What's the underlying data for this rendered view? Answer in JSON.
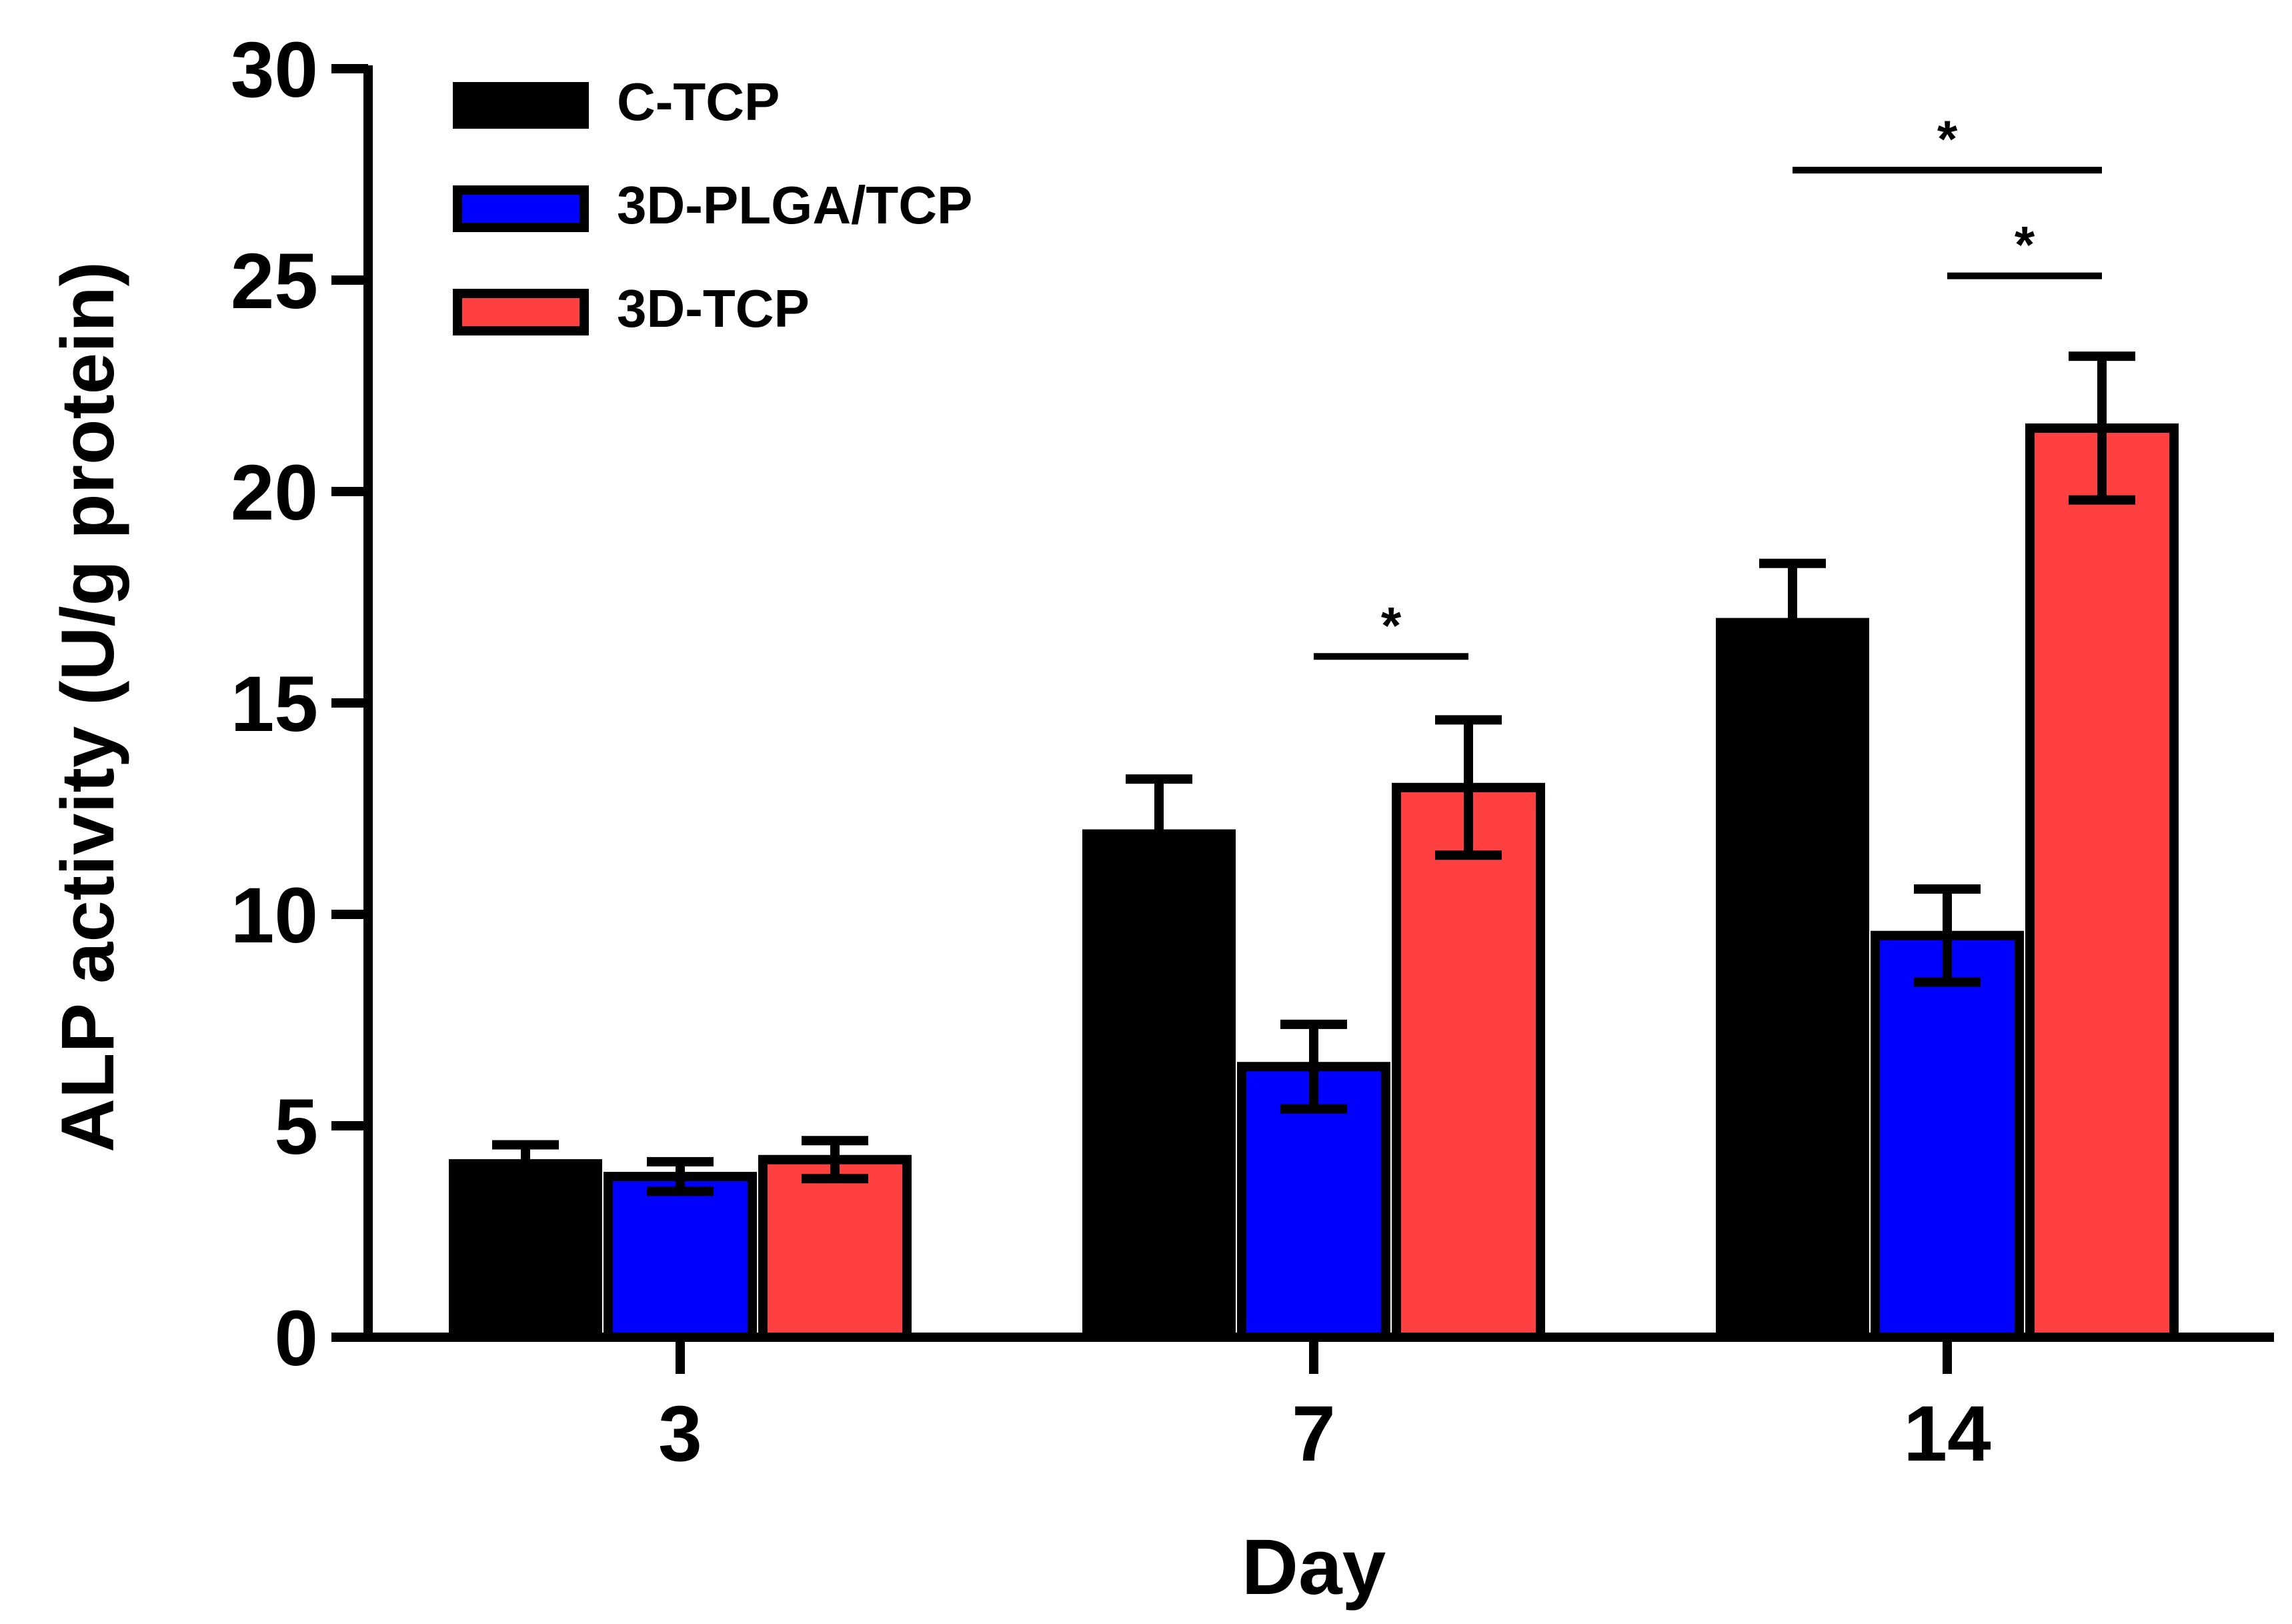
{
  "chart_data": {
    "type": "bar",
    "title": "",
    "xlabel": "Day",
    "ylabel": "ALP activity (U/g protein)",
    "ylim": [
      0,
      30
    ],
    "yticks": [
      "0",
      "5",
      "10",
      "15",
      "20",
      "25",
      "30"
    ],
    "categories": [
      "3",
      "7",
      "14"
    ],
    "grid": false,
    "legend_position": "top-left",
    "series": [
      {
        "name": "C-TCP",
        "color": "#000000",
        "values": [
          4.1,
          11.9,
          16.9
        ],
        "errors": [
          0.45,
          1.3,
          1.4
        ]
      },
      {
        "name": "3D-PLGA/TCP",
        "color": "#0000ff",
        "values": [
          3.8,
          6.4,
          9.5
        ],
        "errors": [
          0.35,
          1.0,
          1.1
        ]
      },
      {
        "name": "3D-TCP",
        "color": "#ff4040",
        "values": [
          4.2,
          13.0,
          21.5
        ],
        "errors": [
          0.45,
          1.6,
          1.7
        ]
      }
    ],
    "significance": [
      {
        "category_index": 1,
        "from_series": 1,
        "to_series": 2,
        "y": 16.1,
        "label": "*"
      },
      {
        "category_index": 2,
        "from_series": 1,
        "to_series": 2,
        "y": 25.1,
        "label": "*"
      },
      {
        "category_index": 2,
        "from_series": 0,
        "to_series": 2,
        "y": 27.6,
        "label": "*"
      }
    ]
  }
}
